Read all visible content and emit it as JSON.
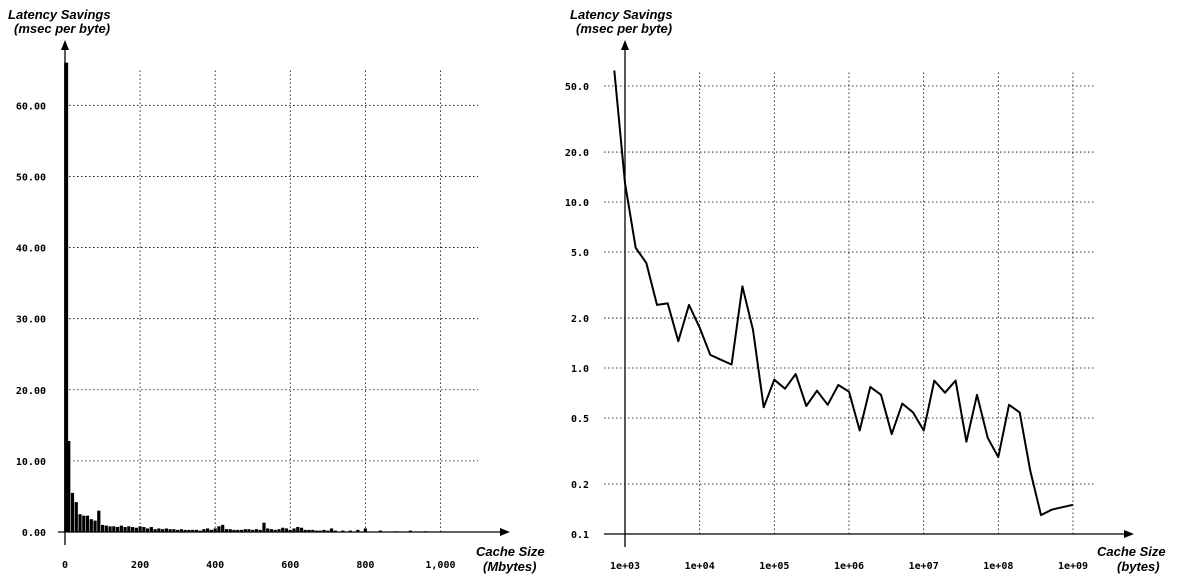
{
  "chart_data": [
    {
      "type": "bar",
      "ylabel_line1": "Latency Savings",
      "ylabel_line2": "(msec per byte)",
      "xlabel_line1": "Cache Size",
      "xlabel_line2": "(Mbytes)",
      "xlim": [
        0,
        1180
      ],
      "ylim": [
        0,
        70
      ],
      "xticks": [
        0,
        200,
        400,
        600,
        800,
        1000
      ],
      "xtick_labels": [
        "0",
        "200",
        "400",
        "600",
        "800",
        "1,000"
      ],
      "yticks": [
        0,
        10,
        20,
        30,
        40,
        50,
        60
      ],
      "ytick_labels": [
        "0.00",
        "10.00",
        "20.00",
        "30.00",
        "40.00",
        "50.00",
        "60.00"
      ],
      "grid": true,
      "x": [
        3,
        10,
        20,
        30,
        40,
        50,
        60,
        70,
        80,
        90,
        100,
        110,
        120,
        130,
        140,
        150,
        160,
        170,
        180,
        190,
        200,
        210,
        220,
        230,
        240,
        250,
        260,
        270,
        280,
        290,
        300,
        310,
        320,
        330,
        340,
        350,
        360,
        370,
        380,
        390,
        400,
        410,
        420,
        430,
        440,
        450,
        460,
        470,
        480,
        490,
        500,
        510,
        520,
        530,
        540,
        550,
        560,
        570,
        580,
        590,
        600,
        610,
        620,
        630,
        640,
        650,
        660,
        670,
        680,
        690,
        700,
        710,
        720,
        740,
        760,
        780,
        800,
        840,
        880,
        920,
        960
      ],
      "values": [
        66,
        12.8,
        5.5,
        4.2,
        2.5,
        2.3,
        2.3,
        1.8,
        1.6,
        3.0,
        1.0,
        0.9,
        0.8,
        0.8,
        0.7,
        0.9,
        0.7,
        0.8,
        0.7,
        0.6,
        0.8,
        0.7,
        0.5,
        0.7,
        0.4,
        0.5,
        0.4,
        0.5,
        0.4,
        0.4,
        0.3,
        0.4,
        0.3,
        0.3,
        0.3,
        0.3,
        0.2,
        0.4,
        0.5,
        0.3,
        0.5,
        0.8,
        1.0,
        0.4,
        0.4,
        0.3,
        0.3,
        0.3,
        0.4,
        0.4,
        0.3,
        0.4,
        0.3,
        1.3,
        0.5,
        0.4,
        0.3,
        0.4,
        0.6,
        0.5,
        0.3,
        0.5,
        0.7,
        0.6,
        0.3,
        0.3,
        0.3,
        0.2,
        0.2,
        0.3,
        0.2,
        0.5,
        0.2,
        0.2,
        0.2,
        0.3,
        0.5,
        0.2,
        0.1,
        0.2,
        0.1
      ]
    },
    {
      "type": "line",
      "ylabel_line1": "Latency Savings",
      "ylabel_line2": "(msec per byte)",
      "xlabel_line1": "Cache Size",
      "xlabel_line2": "(bytes)",
      "x_scale": "log",
      "y_scale": "log",
      "xlim": [
        500,
        2000000000
      ],
      "ylim": [
        0.1,
        70
      ],
      "xticks": [
        1000,
        10000,
        100000,
        1000000,
        10000000,
        100000000,
        1000000000
      ],
      "xtick_labels": [
        "1e+03",
        "1e+04",
        "1e+05",
        "1e+06",
        "1e+07",
        "1e+08",
        "1e+09"
      ],
      "yticks": [
        0.1,
        0.2,
        0.5,
        1.0,
        2.0,
        5.0,
        10.0,
        20.0,
        50.0
      ],
      "ytick_labels": [
        "0.1",
        "0.2",
        "0.5",
        "1.0",
        "2.0",
        "5.0",
        "10.0",
        "20.0",
        "50.0"
      ],
      "grid": true,
      "x": [
        720,
        1000,
        1390,
        1930,
        2680,
        3730,
        5180,
        7200,
        10000,
        13900,
        19300,
        26800,
        37300,
        51800,
        72000,
        100000,
        139000,
        193000,
        268000,
        373000,
        518000,
        720000,
        1000000,
        1390000,
        1930000,
        2680000,
        3730000,
        5180000,
        7200000,
        10000000,
        13900000,
        19300000,
        26800000,
        37300000,
        51800000,
        72000000,
        100000000,
        139000000,
        193000000,
        268000000,
        373000000,
        518000000,
        720000000,
        1000000000
      ],
      "values": [
        62,
        13.0,
        5.3,
        4.3,
        2.4,
        2.45,
        1.45,
        2.4,
        1.75,
        1.2,
        1.12,
        1.05,
        3.1,
        1.7,
        0.58,
        0.85,
        0.75,
        0.92,
        0.59,
        0.73,
        0.6,
        0.79,
        0.72,
        0.42,
        0.77,
        0.69,
        0.4,
        0.61,
        0.54,
        0.42,
        0.84,
        0.71,
        0.84,
        0.36,
        0.69,
        0.38,
        0.29,
        0.6,
        0.54,
        0.24,
        0.13,
        0.14,
        0.145,
        0.15
      ]
    }
  ]
}
